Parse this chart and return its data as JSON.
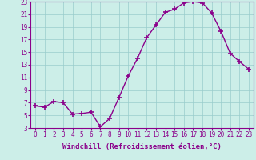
{
  "x": [
    0,
    1,
    2,
    3,
    4,
    5,
    6,
    7,
    8,
    9,
    10,
    11,
    12,
    13,
    14,
    15,
    16,
    17,
    18,
    19,
    20,
    21,
    22,
    23
  ],
  "y": [
    6.5,
    6.3,
    7.2,
    7.0,
    5.2,
    5.3,
    5.5,
    3.2,
    4.5,
    7.8,
    11.2,
    14.0,
    17.3,
    19.3,
    21.3,
    21.8,
    22.8,
    23.0,
    22.8,
    21.2,
    18.3,
    14.8,
    13.5,
    12.3
  ],
  "line_color": "#8B008B",
  "marker": "+",
  "markersize": 4,
  "markeredgewidth": 1.2,
  "bg_color": "#cceee8",
  "grid_color": "#99cccc",
  "xlabel": "Windchill (Refroidissement éolien,°C)",
  "xlabel_color": "#8B008B",
  "tick_color": "#8B008B",
  "ylim": [
    3,
    23
  ],
  "yticks": [
    3,
    5,
    7,
    9,
    11,
    13,
    15,
    17,
    19,
    21,
    23
  ],
  "xticks": [
    0,
    1,
    2,
    3,
    4,
    5,
    6,
    7,
    8,
    9,
    10,
    11,
    12,
    13,
    14,
    15,
    16,
    17,
    18,
    19,
    20,
    21,
    22,
    23
  ],
  "linewidth": 1.0,
  "tick_fontsize": 5.5,
  "xlabel_fontsize": 6.5
}
